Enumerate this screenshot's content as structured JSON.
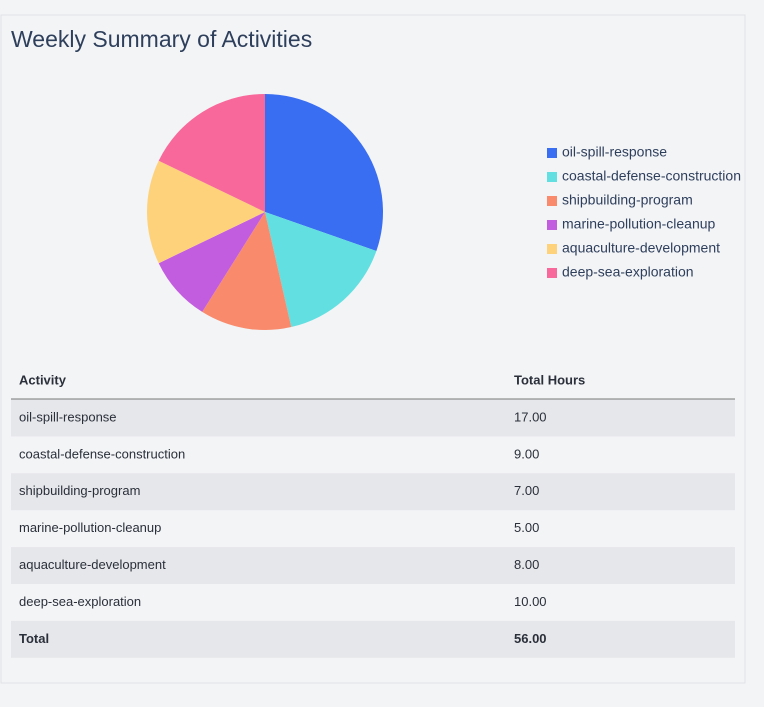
{
  "chart_data": {
    "type": "pie",
    "title": "Weekly Summary of Activities",
    "labels": [
      "oil-spill-response",
      "coastal-defense-construction",
      "shipbuilding-program",
      "marine-pollution-cleanup",
      "aquaculture-development",
      "deep-sea-exploration"
    ],
    "values": [
      17,
      9,
      7,
      5,
      8,
      10
    ],
    "colors": [
      "#3a6ef2",
      "#62dfe0",
      "#f98b6c",
      "#c35de0",
      "#fed27b",
      "#f8689a"
    ],
    "legend": "right"
  },
  "table": {
    "columns": [
      "Activity",
      "Total Hours"
    ],
    "rows": [
      [
        "oil-spill-response",
        "17.00"
      ],
      [
        "coastal-defense-construction",
        "9.00"
      ],
      [
        "shipbuilding-program",
        "7.00"
      ],
      [
        "marine-pollution-cleanup",
        "5.00"
      ],
      [
        "aquaculture-development",
        "8.00"
      ],
      [
        "deep-sea-exploration",
        "10.00"
      ]
    ],
    "total": [
      "Total",
      "56.00"
    ]
  }
}
